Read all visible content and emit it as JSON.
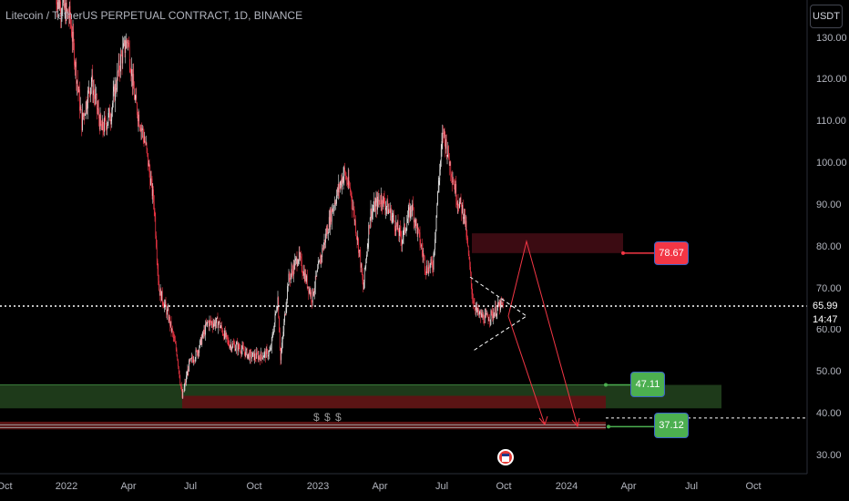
{
  "header": {
    "title": "Litecoin / TetherUS PERPETUAL CONTRACT, 1D, BINANCE",
    "currency": "USDT"
  },
  "colors": {
    "background": "#000000",
    "up": "#e8e8e8",
    "down": "#f23645",
    "resistance_zone": "#3b0b12",
    "support_zone_green": "#1e3a1a",
    "support_zone_red": "#5b1414",
    "red_badge": "#f23645",
    "green_badge": "#4caf50",
    "arrow": "#f23645",
    "current_price_line": "#ffffff"
  },
  "y_axis": {
    "ticks": [
      "30.00",
      "40.00",
      "50.00",
      "60.00",
      "70.00",
      "80.00",
      "90.00",
      "100.00",
      "110.00",
      "120.00",
      "130.00"
    ]
  },
  "x_axis": {
    "ticks": [
      "Oct",
      "2022",
      "Apr",
      "Jul",
      "Oct",
      "2023",
      "Apr",
      "Jul",
      "Oct",
      "2024",
      "Apr",
      "Jul",
      "Oct"
    ]
  },
  "current_price": {
    "value": "65.99",
    "countdown": "14:47"
  },
  "levels": {
    "resistance": {
      "value": "78.67",
      "color": "#f23645"
    },
    "support_top": {
      "value": "47.11",
      "color": "#4caf50"
    },
    "support_bottom": {
      "value": "37.12",
      "color": "#4caf50"
    }
  },
  "annotation": {
    "dollars": "$ $ $"
  },
  "icons": {
    "event_flag": "us-flag-icon"
  },
  "chart_data": {
    "type": "candlestick",
    "title": "Litecoin / TetherUS PERPETUAL CONTRACT, 1D, BINANCE",
    "ylim": [
      26,
      137
    ],
    "grid": false,
    "price_path": [
      {
        "t": "2021-12-15",
        "v": 140
      },
      {
        "t": "2022-01-05",
        "v": 135
      },
      {
        "t": "2022-01-22",
        "v": 110
      },
      {
        "t": "2022-02-05",
        "v": 120
      },
      {
        "t": "2022-02-20",
        "v": 108
      },
      {
        "t": "2022-03-05",
        "v": 112
      },
      {
        "t": "2022-03-20",
        "v": 125
      },
      {
        "t": "2022-03-30",
        "v": 130
      },
      {
        "t": "2022-04-10",
        "v": 115
      },
      {
        "t": "2022-04-25",
        "v": 105
      },
      {
        "t": "2022-05-08",
        "v": 90
      },
      {
        "t": "2022-05-15",
        "v": 70
      },
      {
        "t": "2022-05-28",
        "v": 64
      },
      {
        "t": "2022-06-10",
        "v": 55
      },
      {
        "t": "2022-06-18",
        "v": 44
      },
      {
        "t": "2022-06-28",
        "v": 52
      },
      {
        "t": "2022-07-10",
        "v": 55
      },
      {
        "t": "2022-07-25",
        "v": 62
      },
      {
        "t": "2022-08-10",
        "v": 62
      },
      {
        "t": "2022-08-25",
        "v": 57
      },
      {
        "t": "2022-09-10",
        "v": 56
      },
      {
        "t": "2022-09-25",
        "v": 54
      },
      {
        "t": "2022-10-10",
        "v": 54
      },
      {
        "t": "2022-10-25",
        "v": 55
      },
      {
        "t": "2022-11-05",
        "v": 68
      },
      {
        "t": "2022-11-09",
        "v": 53
      },
      {
        "t": "2022-11-20",
        "v": 72
      },
      {
        "t": "2022-12-05",
        "v": 78
      },
      {
        "t": "2022-12-25",
        "v": 68
      },
      {
        "t": "2023-01-10",
        "v": 80
      },
      {
        "t": "2023-01-25",
        "v": 90
      },
      {
        "t": "2023-02-10",
        "v": 98
      },
      {
        "t": "2023-02-20",
        "v": 93
      },
      {
        "t": "2023-03-05",
        "v": 78
      },
      {
        "t": "2023-03-10",
        "v": 70
      },
      {
        "t": "2023-03-20",
        "v": 88
      },
      {
        "t": "2023-04-05",
        "v": 92
      },
      {
        "t": "2023-04-20",
        "v": 88
      },
      {
        "t": "2023-05-05",
        "v": 82
      },
      {
        "t": "2023-05-20",
        "v": 90
      },
      {
        "t": "2023-06-10",
        "v": 75
      },
      {
        "t": "2023-06-20",
        "v": 76
      },
      {
        "t": "2023-06-28",
        "v": 95
      },
      {
        "t": "2023-07-05",
        "v": 108
      },
      {
        "t": "2023-07-15",
        "v": 100
      },
      {
        "t": "2023-07-25",
        "v": 92
      },
      {
        "t": "2023-08-05",
        "v": 88
      },
      {
        "t": "2023-08-17",
        "v": 68
      },
      {
        "t": "2023-08-25",
        "v": 64
      },
      {
        "t": "2023-09-05",
        "v": 63
      },
      {
        "t": "2023-09-15",
        "v": 64
      },
      {
        "t": "2023-09-25",
        "v": 66
      },
      {
        "t": "2023-10-01",
        "v": 66
      }
    ],
    "levels": [
      78.67,
      47.11,
      37.12
    ],
    "current_price": 65.99
  }
}
